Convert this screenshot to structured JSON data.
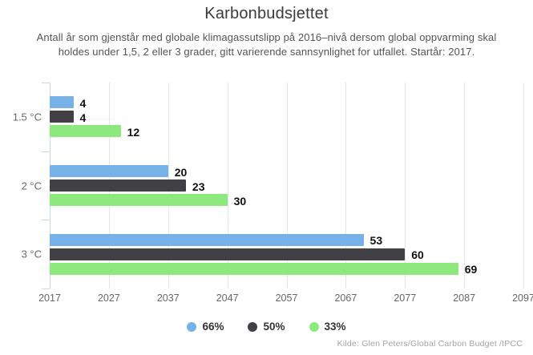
{
  "header": {
    "title": "Karbonbudsjettet",
    "subtitle": "Antall år som gjenstår med globale klimagassutslipp på 2016–nivå dersom global oppvarming skal holdes under 1,5, 2 eller 3 grader, gitt varierende sannsynlighet for utfallet. Startår: 2017."
  },
  "chart_data": {
    "type": "bar",
    "orientation": "horizontal",
    "title": "Karbonbudsjettet",
    "categories": [
      "1.5 °C",
      "2 °C",
      "3 °C"
    ],
    "series": [
      {
        "name": "66%",
        "color": "#76b1e8",
        "values": [
          4,
          20,
          53
        ]
      },
      {
        "name": "50%",
        "color": "#404045",
        "values": [
          4,
          23,
          60
        ]
      },
      {
        "name": "33%",
        "color": "#8de97e",
        "values": [
          12,
          30,
          69
        ]
      }
    ],
    "value_axis": {
      "min": 2017,
      "max": 2097,
      "tick_interval": 10,
      "tick_labels": [
        "2017",
        "2027",
        "2037",
        "2047",
        "2057",
        "2067",
        "2077",
        "2087",
        "2097"
      ]
    },
    "data_labels": true,
    "grid": true,
    "legend_position": "bottom-center",
    "colors": {
      "gridline": "#e6e6e6",
      "axis_line": "#ccd6eb",
      "axis_text": "#666666",
      "data_label_text": "#111111"
    }
  },
  "footer": {
    "source": "Kilde: Glen Peters/Global Carbon Budget /IPCC"
  }
}
